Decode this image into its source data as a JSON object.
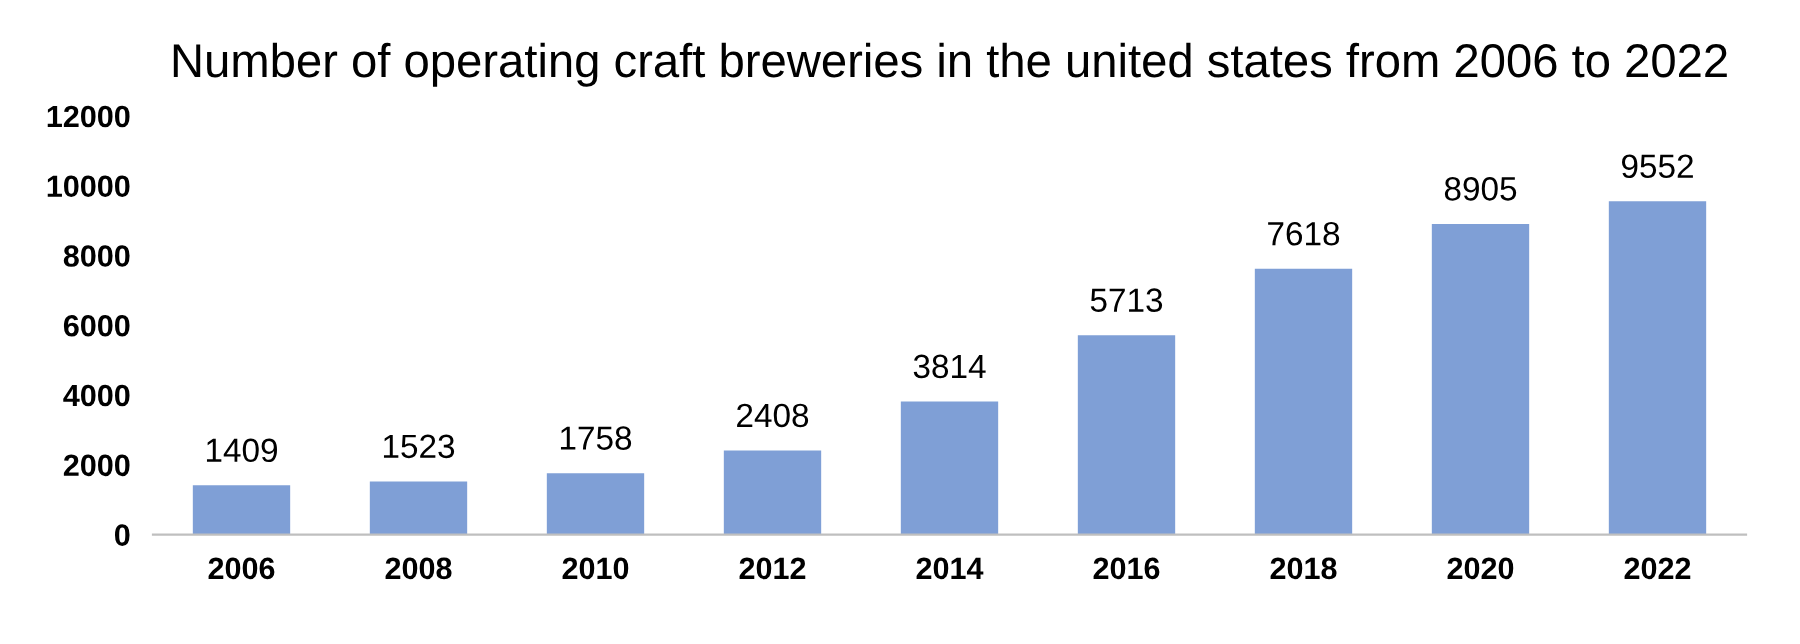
{
  "chart_data": {
    "type": "bar",
    "title": "Number of operating craft breweries in the united states from 2006 to 2022",
    "categories": [
      "2006",
      "2008",
      "2010",
      "2012",
      "2014",
      "2016",
      "2018",
      "2020",
      "2022"
    ],
    "values": [
      1409,
      1523,
      1758,
      2408,
      3814,
      5713,
      7618,
      8905,
      9552
    ],
    "color": "#7f9fd6",
    "ylim": [
      0,
      12000
    ],
    "yticks": [
      0,
      2000,
      4000,
      6000,
      8000,
      10000,
      12000
    ],
    "data_labels": true,
    "grid": false,
    "legend": false
  }
}
